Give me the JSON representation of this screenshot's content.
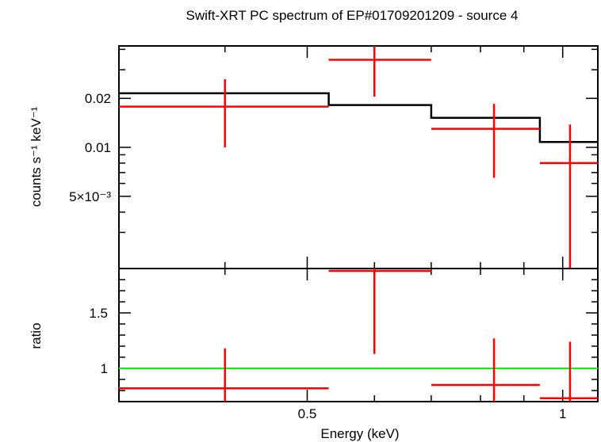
{
  "chart_data": [
    {
      "type": "line",
      "panel": "spectrum",
      "title": "Swift-XRT PC spectrum of EP#01709201209 - source 4",
      "ylabel": "counts s⁻¹ keV⁻¹",
      "xlabel": "",
      "x_scale": "log",
      "y_scale": "log",
      "xlim": [
        0.3,
        1.1
      ],
      "ylim": [
        0.0018,
        0.042
      ],
      "y_ticks": [
        {
          "value": 0.02,
          "label": "0.02"
        },
        {
          "value": 0.01,
          "label": "0.01"
        },
        {
          "value": 0.005,
          "label": "5×10⁻³"
        }
      ],
      "model": {
        "color": "#000000",
        "edges": [
          0.3,
          0.53,
          0.7,
          0.94,
          1.1
        ],
        "values": [
          0.0215,
          0.0182,
          0.0152,
          0.0108
        ]
      },
      "data_points": {
        "color": "#ff0000",
        "points": [
          {
            "x": 0.4,
            "xlo": 0.3,
            "xhi": 0.53,
            "y": 0.0178,
            "ylo": 0.01,
            "yhi": 0.0262
          },
          {
            "x": 0.6,
            "xlo": 0.53,
            "xhi": 0.7,
            "y": 0.0345,
            "ylo": 0.0205,
            "yhi": 0.0485
          },
          {
            "x": 0.83,
            "xlo": 0.7,
            "xhi": 0.94,
            "y": 0.013,
            "ylo": 0.0065,
            "yhi": 0.0185
          },
          {
            "x": 1.02,
            "xlo": 0.94,
            "xhi": 1.1,
            "y": 0.008,
            "ylo": 0.0018,
            "yhi": 0.0138
          }
        ]
      }
    },
    {
      "type": "line",
      "panel": "ratio",
      "title": "",
      "ylabel": "ratio",
      "xlabel": "Energy (keV)",
      "x_scale": "log",
      "xlim": [
        0.3,
        1.1
      ],
      "ylim": [
        0.7,
        1.9
      ],
      "y_ticks": [
        {
          "value": 1.5,
          "label": "1.5"
        },
        {
          "value": 1,
          "label": "1"
        }
      ],
      "x_ticks": [
        {
          "value": 0.5,
          "label": "0.5"
        },
        {
          "value": 1,
          "label": "1"
        }
      ],
      "reference": {
        "y": 1,
        "color": "#00ff00"
      },
      "data_points": {
        "color": "#ff0000",
        "points": [
          {
            "x": 0.4,
            "xlo": 0.3,
            "xhi": 0.53,
            "y": 0.82,
            "ylo": 0.61,
            "yhi": 1.18
          },
          {
            "x": 0.6,
            "xlo": 0.53,
            "xhi": 0.7,
            "y": 1.9,
            "ylo": 1.13,
            "yhi": 1.95
          },
          {
            "x": 0.83,
            "xlo": 0.7,
            "xhi": 0.94,
            "y": 0.85,
            "ylo": 0.45,
            "yhi": 1.27
          },
          {
            "x": 1.02,
            "xlo": 0.94,
            "xhi": 1.1,
            "y": 0.73,
            "ylo": 0.2,
            "yhi": 1.24
          }
        ]
      }
    }
  ]
}
